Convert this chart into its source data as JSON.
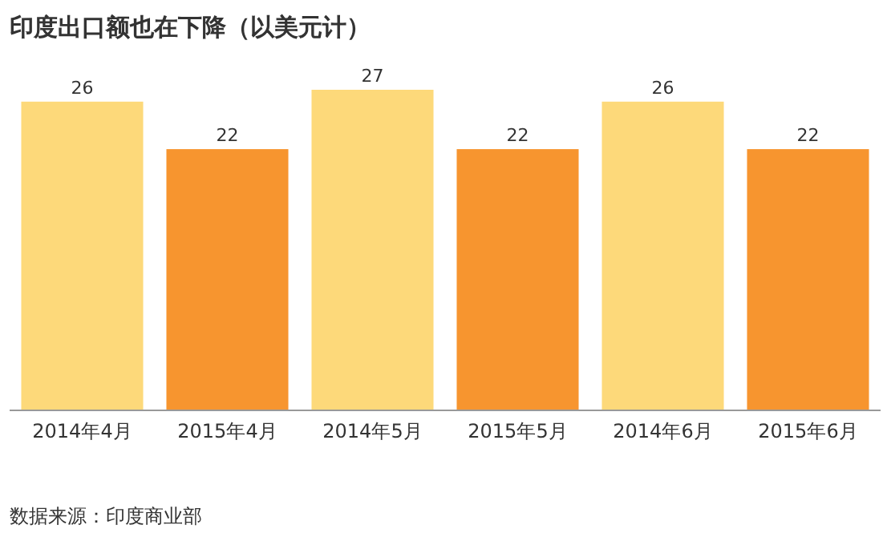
{
  "chart_data": {
    "type": "bar",
    "title": "印度出口额也在下降（以美元计）",
    "categories": [
      "2014年4月",
      "2015年4月",
      "2014年5月",
      "2015年5月",
      "2014年6月",
      "2015年6月"
    ],
    "values": [
      26,
      22,
      27,
      22,
      26,
      22
    ],
    "colors": [
      "#fdd97a",
      "#f7952f",
      "#fdd97a",
      "#f7952f",
      "#fdd97a",
      "#f7952f"
    ],
    "data_labels": true,
    "annotations": [
      "数据来源：印度商业部"
    ]
  }
}
